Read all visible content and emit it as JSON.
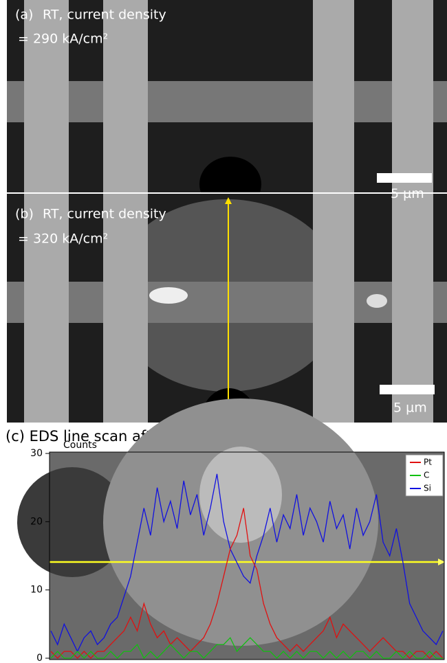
{
  "panels": [
    {
      "label": "(a)",
      "caption": "RT, current density",
      "density": "= 290 kA/cm²",
      "scale": "5 µm"
    },
    {
      "label": "(b)",
      "caption": "RT, current density",
      "density": "= 320 kA/cm²",
      "scale": "5 µm"
    }
  ],
  "chart_title": "(c) EDS line scan after experiment",
  "chart_data": {
    "type": "line",
    "y_label": "Counts",
    "ylim": [
      0,
      30
    ],
    "yticks": [
      0,
      10,
      20,
      30
    ],
    "legend": "upper right",
    "series": [
      {
        "name": "Pt",
        "color": "#e01010",
        "values": [
          1,
          0,
          1,
          1,
          0,
          1,
          0,
          1,
          1,
          2,
          3,
          4,
          6,
          4,
          8,
          5,
          3,
          4,
          2,
          3,
          2,
          1,
          2,
          3,
          5,
          8,
          12,
          16,
          18,
          22,
          15,
          13,
          8,
          5,
          3,
          2,
          1,
          2,
          1,
          2,
          3,
          4,
          6,
          3,
          5,
          4,
          3,
          2,
          1,
          2,
          3,
          2,
          1,
          1,
          0,
          1,
          1,
          0,
          1,
          0
        ]
      },
      {
        "name": "C",
        "color": "#10c010",
        "values": [
          0,
          1,
          0,
          0,
          1,
          0,
          1,
          0,
          0,
          1,
          0,
          1,
          1,
          2,
          0,
          1,
          0,
          1,
          2,
          1,
          0,
          1,
          1,
          0,
          1,
          2,
          2,
          3,
          1,
          2,
          3,
          2,
          1,
          1,
          0,
          1,
          0,
          1,
          0,
          1,
          1,
          0,
          1,
          0,
          1,
          0,
          1,
          1,
          0,
          1,
          0,
          0,
          1,
          0,
          1,
          0,
          0,
          1,
          0,
          0
        ]
      },
      {
        "name": "Si",
        "color": "#1010e0",
        "values": [
          4,
          2,
          5,
          3,
          1,
          3,
          4,
          2,
          3,
          5,
          6,
          9,
          12,
          17,
          22,
          18,
          25,
          20,
          23,
          19,
          26,
          21,
          24,
          18,
          22,
          27,
          20,
          16,
          14,
          12,
          11,
          15,
          18,
          22,
          17,
          21,
          19,
          24,
          18,
          22,
          20,
          17,
          23,
          19,
          21,
          16,
          22,
          18,
          20,
          24,
          17,
          15,
          19,
          14,
          8,
          6,
          4,
          3,
          2,
          4
        ]
      }
    ]
  }
}
